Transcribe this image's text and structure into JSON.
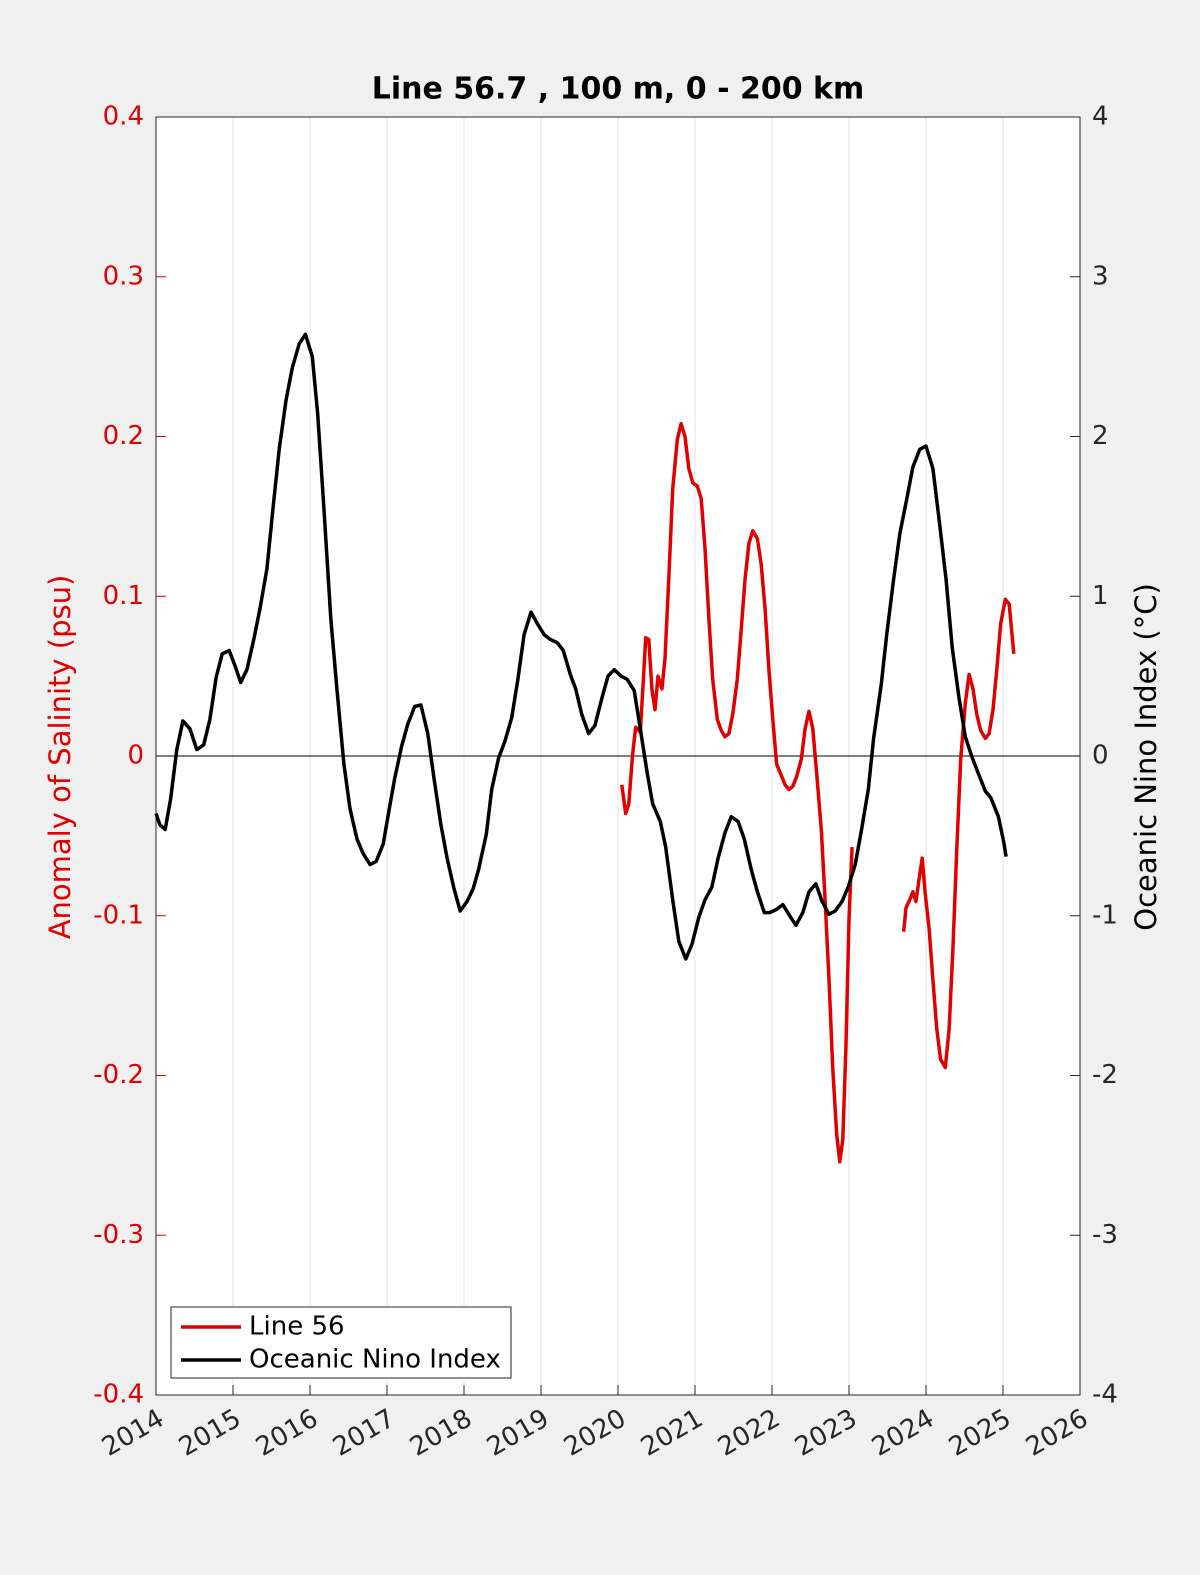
{
  "chart_data": {
    "type": "line",
    "title": "Line 56.7 , 100 m, 0 - 200 km",
    "ylabel": "Anomaly of Salinity (psu)",
    "y2label": "Oceanic Nino Index (°C)",
    "xlim": [
      2014,
      2026
    ],
    "xticks": [
      2014,
      2015,
      2016,
      2017,
      2018,
      2019,
      2020,
      2021,
      2022,
      2023,
      2024,
      2025,
      2026
    ],
    "ylim": [
      -0.4,
      0.4
    ],
    "yticks": [
      -0.4,
      -0.3,
      -0.2,
      -0.1,
      0,
      0.1,
      0.2,
      0.3,
      0.4
    ],
    "y2lim": [
      -4,
      4
    ],
    "y2ticks": [
      -4,
      -3,
      -2,
      -1,
      0,
      1,
      2,
      3,
      4
    ],
    "grid": "x",
    "zero_line": true,
    "legend": "lower left",
    "ylabel_color": "#e00000",
    "series": [
      {
        "name": "Line 56",
        "color": "#e00000",
        "axis": "y",
        "x": [
          2020.05,
          2020.1,
          2020.14,
          2020.19,
          2020.23,
          2020.29,
          2020.33,
          2020.36,
          2020.4,
          2020.44,
          2020.48,
          2020.52,
          2020.57,
          2020.61,
          2020.66,
          2020.71,
          2020.77,
          2020.82,
          2020.87,
          2020.92,
          2020.97,
          2021.03,
          2021.08,
          2021.13,
          2021.18,
          2021.23,
          2021.29,
          2021.34,
          2021.39,
          2021.44,
          2021.49,
          2021.55,
          2021.6,
          2021.65,
          2021.7,
          2021.75,
          2021.81,
          2021.86,
          2021.91,
          2021.96,
          2022.01,
          2022.06,
          2022.12,
          2022.17,
          2022.22,
          2022.27,
          2022.32,
          2022.38,
          2022.43,
          2022.48,
          2022.53,
          2022.58,
          2022.64,
          2022.69,
          2022.74,
          2022.79,
          2022.84,
          2022.88,
          2022.92,
          2022.96,
          2023.0,
          2023.04,
          2023.4,
          2023.71,
          2023.74,
          2023.79,
          2023.83,
          2023.87,
          2023.91,
          2023.95,
          2023.99,
          2024.04,
          2024.09,
          2024.14,
          2024.19,
          2024.25,
          2024.3,
          2024.35,
          2024.4,
          2024.45,
          2024.51,
          2024.56,
          2024.61,
          2024.66,
          2024.71,
          2024.77,
          2024.82,
          2024.87,
          2024.92,
          2024.97,
          2025.03,
          2025.08,
          2025.14
        ],
        "values": [
          -0.018,
          -0.036,
          -0.03,
          0.001,
          0.018,
          0.015,
          0.048,
          0.074,
          0.073,
          0.042,
          0.029,
          0.05,
          0.042,
          0.061,
          0.111,
          0.167,
          0.198,
          0.208,
          0.2,
          0.18,
          0.171,
          0.169,
          0.161,
          0.13,
          0.086,
          0.048,
          0.023,
          0.016,
          0.012,
          0.014,
          0.026,
          0.048,
          0.079,
          0.111,
          0.133,
          0.141,
          0.136,
          0.12,
          0.092,
          0.054,
          0.023,
          -0.005,
          -0.012,
          -0.018,
          -0.021,
          -0.019,
          -0.013,
          -0.002,
          0.017,
          0.028,
          0.017,
          -0.011,
          -0.046,
          -0.09,
          -0.14,
          -0.196,
          -0.237,
          -0.254,
          -0.24,
          -0.183,
          -0.102,
          -0.057,
          null,
          -0.11,
          -0.095,
          -0.09,
          -0.085,
          -0.091,
          -0.077,
          -0.064,
          -0.086,
          -0.108,
          -0.14,
          -0.171,
          -0.19,
          -0.195,
          -0.171,
          -0.121,
          -0.058,
          -0.002,
          0.033,
          0.051,
          0.042,
          0.026,
          0.016,
          0.011,
          0.014,
          0.029,
          0.054,
          0.083,
          0.098,
          0.095,
          0.064
        ]
      },
      {
        "name": "Oceanic Nino Index",
        "color": "#000000",
        "axis": "y2",
        "x": [
          2014.0,
          2014.05,
          2014.12,
          2014.19,
          2014.27,
          2014.35,
          2014.44,
          2014.53,
          2014.62,
          2014.7,
          2014.78,
          2014.86,
          2014.95,
          2015.03,
          2015.1,
          2015.18,
          2015.27,
          2015.35,
          2015.44,
          2015.52,
          2015.6,
          2015.69,
          2015.77,
          2015.86,
          2015.94,
          2016.03,
          2016.1,
          2016.18,
          2016.27,
          2016.35,
          2016.44,
          2016.52,
          2016.61,
          2016.69,
          2016.78,
          2016.86,
          2016.95,
          2017.03,
          2017.1,
          2017.19,
          2017.27,
          2017.36,
          2017.44,
          2017.53,
          2017.61,
          2017.7,
          2017.78,
          2017.87,
          2017.95,
          2018.04,
          2018.12,
          2018.19,
          2018.29,
          2018.36,
          2018.45,
          2018.53,
          2018.62,
          2018.7,
          2018.78,
          2018.87,
          2018.95,
          2019.04,
          2019.12,
          2019.21,
          2019.29,
          2019.38,
          2019.45,
          2019.53,
          2019.62,
          2019.7,
          2019.79,
          2019.87,
          2019.95,
          2020.04,
          2020.12,
          2020.21,
          2020.29,
          2020.38,
          2020.45,
          2020.55,
          2020.62,
          2020.71,
          2020.79,
          2020.88,
          2020.96,
          2021.05,
          2021.13,
          2021.22,
          2021.3,
          2021.39,
          2021.47,
          2021.56,
          2021.64,
          2021.73,
          2021.81,
          2021.9,
          2021.97,
          2022.06,
          2022.14,
          2022.23,
          2022.31,
          2022.4,
          2022.48,
          2022.57,
          2022.65,
          2022.74,
          2022.82,
          2022.91,
          2022.99,
          2023.08,
          2023.16,
          2023.25,
          2023.32,
          2023.42,
          2023.49,
          2023.58,
          2023.66,
          2023.75,
          2023.83,
          2023.92,
          2024.0,
          2024.09,
          2024.17,
          2024.26,
          2024.34,
          2024.43,
          2024.51,
          2024.6,
          2024.68,
          2024.77,
          2024.84,
          2024.94,
          2025.01,
          2025.04
        ],
        "values": [
          -0.36,
          -0.43,
          -0.46,
          -0.27,
          0.04,
          0.22,
          0.17,
          0.04,
          0.07,
          0.23,
          0.49,
          0.64,
          0.66,
          0.56,
          0.46,
          0.54,
          0.73,
          0.92,
          1.17,
          1.55,
          1.92,
          2.23,
          2.43,
          2.58,
          2.64,
          2.5,
          2.14,
          1.55,
          0.86,
          0.42,
          -0.05,
          -0.33,
          -0.52,
          -0.61,
          -0.68,
          -0.66,
          -0.55,
          -0.33,
          -0.14,
          0.06,
          0.2,
          0.31,
          0.32,
          0.14,
          -0.14,
          -0.43,
          -0.64,
          -0.83,
          -0.97,
          -0.91,
          -0.83,
          -0.71,
          -0.49,
          -0.21,
          -0.01,
          0.09,
          0.24,
          0.48,
          0.76,
          0.9,
          0.83,
          0.76,
          0.73,
          0.71,
          0.66,
          0.51,
          0.42,
          0.26,
          0.14,
          0.19,
          0.36,
          0.5,
          0.54,
          0.5,
          0.48,
          0.41,
          0.17,
          -0.11,
          -0.3,
          -0.41,
          -0.57,
          -0.9,
          -1.16,
          -1.27,
          -1.18,
          -1.01,
          -0.9,
          -0.82,
          -0.64,
          -0.48,
          -0.38,
          -0.41,
          -0.52,
          -0.71,
          -0.85,
          -0.98,
          -0.98,
          -0.96,
          -0.93,
          -1.0,
          -1.06,
          -0.98,
          -0.85,
          -0.8,
          -0.91,
          -0.99,
          -0.97,
          -0.91,
          -0.82,
          -0.68,
          -0.47,
          -0.21,
          0.11,
          0.45,
          0.76,
          1.11,
          1.39,
          1.61,
          1.81,
          1.92,
          1.94,
          1.8,
          1.48,
          1.11,
          0.68,
          0.36,
          0.12,
          -0.01,
          -0.11,
          -0.22,
          -0.26,
          -0.38,
          -0.54,
          -0.63
        ]
      }
    ]
  }
}
